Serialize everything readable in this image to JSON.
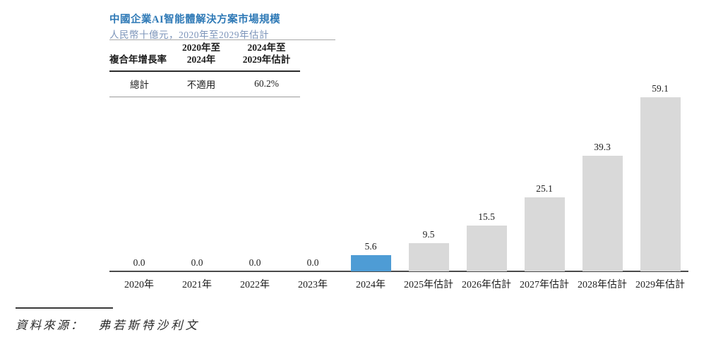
{
  "header": {
    "title": "中國企業AI智能體解決方案市場規模",
    "subtitle": "人民幣十億元，2020年至2029年估計"
  },
  "cagr_table": {
    "row_header_label": "複合年增長率",
    "col1_line1": "2020年至",
    "col1_line2": "2024年",
    "col2_line1": "2024年至",
    "col2_line2": "2029年估計",
    "row": {
      "label": "總計",
      "col1": "不適用",
      "col2": "60.2%"
    }
  },
  "chart_data": {
    "type": "bar",
    "title": "中國企業AI智能體解決方案市場規模",
    "unit_note": "人民幣十億元",
    "period_note": "2020年至2029年估計",
    "categories": [
      "2020年",
      "2021年",
      "2022年",
      "2023年",
      "2024年",
      "2025年估計",
      "2026年估計",
      "2027年估計",
      "2028年估計",
      "2029年估計"
    ],
    "values": [
      0.0,
      0.0,
      0.0,
      0.0,
      5.6,
      9.5,
      15.5,
      25.1,
      39.3,
      59.1
    ],
    "value_labels": [
      "0.0",
      "0.0",
      "0.0",
      "0.0",
      "5.6",
      "9.5",
      "15.5",
      "25.1",
      "39.3",
      "59.1"
    ],
    "highlight_index": 4,
    "bar_color": "#d9d9d9",
    "highlight_color": "#4e9cd5",
    "axis_color": "#4a4a4a",
    "ylim": [
      0,
      62
    ],
    "grid": false,
    "data_labels": true,
    "legend": "none",
    "cagr_total_2020_2024": "不適用",
    "cagr_total_2024_2029": "60.2%"
  },
  "footer": {
    "source_label": "資料來源：",
    "source_text": "弗若斯特沙利文"
  }
}
